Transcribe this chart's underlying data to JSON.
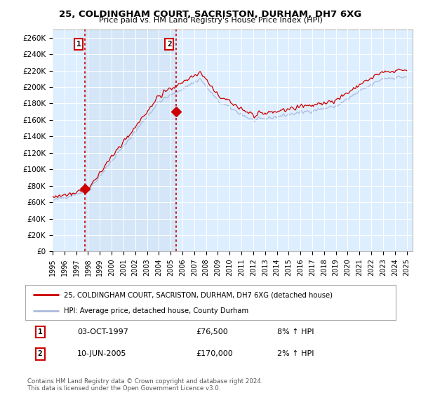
{
  "title": "25, COLDINGHAM COURT, SACRISTON, DURHAM, DH7 6XG",
  "subtitle": "Price paid vs. HM Land Registry's House Price Index (HPI)",
  "ylabel_ticks": [
    "£0",
    "£20K",
    "£40K",
    "£60K",
    "£80K",
    "£100K",
    "£120K",
    "£140K",
    "£160K",
    "£180K",
    "£200K",
    "£220K",
    "£240K",
    "£260K"
  ],
  "ytick_values": [
    0,
    20000,
    40000,
    60000,
    80000,
    100000,
    120000,
    140000,
    160000,
    180000,
    200000,
    220000,
    240000,
    260000
  ],
  "house_color": "#cc0000",
  "hpi_color": "#aabbdd",
  "legend1": "25, COLDINGHAM COURT, SACRISTON, DURHAM, DH7 6XG (detached house)",
  "legend2": "HPI: Average price, detached house, County Durham",
  "point1_date": "03-OCT-1997",
  "point1_price": "£76,500",
  "point1_hpi": "8% ↑ HPI",
  "point2_date": "10-JUN-2005",
  "point2_price": "£170,000",
  "point2_hpi": "2% ↑ HPI",
  "footer": "Contains HM Land Registry data © Crown copyright and database right 2024.\nThis data is licensed under the Open Government Licence v3.0.",
  "vline1_x": 1997.75,
  "vline2_x": 2005.44,
  "point1_x": 1997.75,
  "point1_y": 76500,
  "point2_x": 2005.44,
  "point2_y": 170000,
  "xlim": [
    1995.0,
    2025.5
  ],
  "ylim": [
    0,
    270000
  ],
  "background_color": "#ddeeff",
  "shade_color": "#ccddf0"
}
